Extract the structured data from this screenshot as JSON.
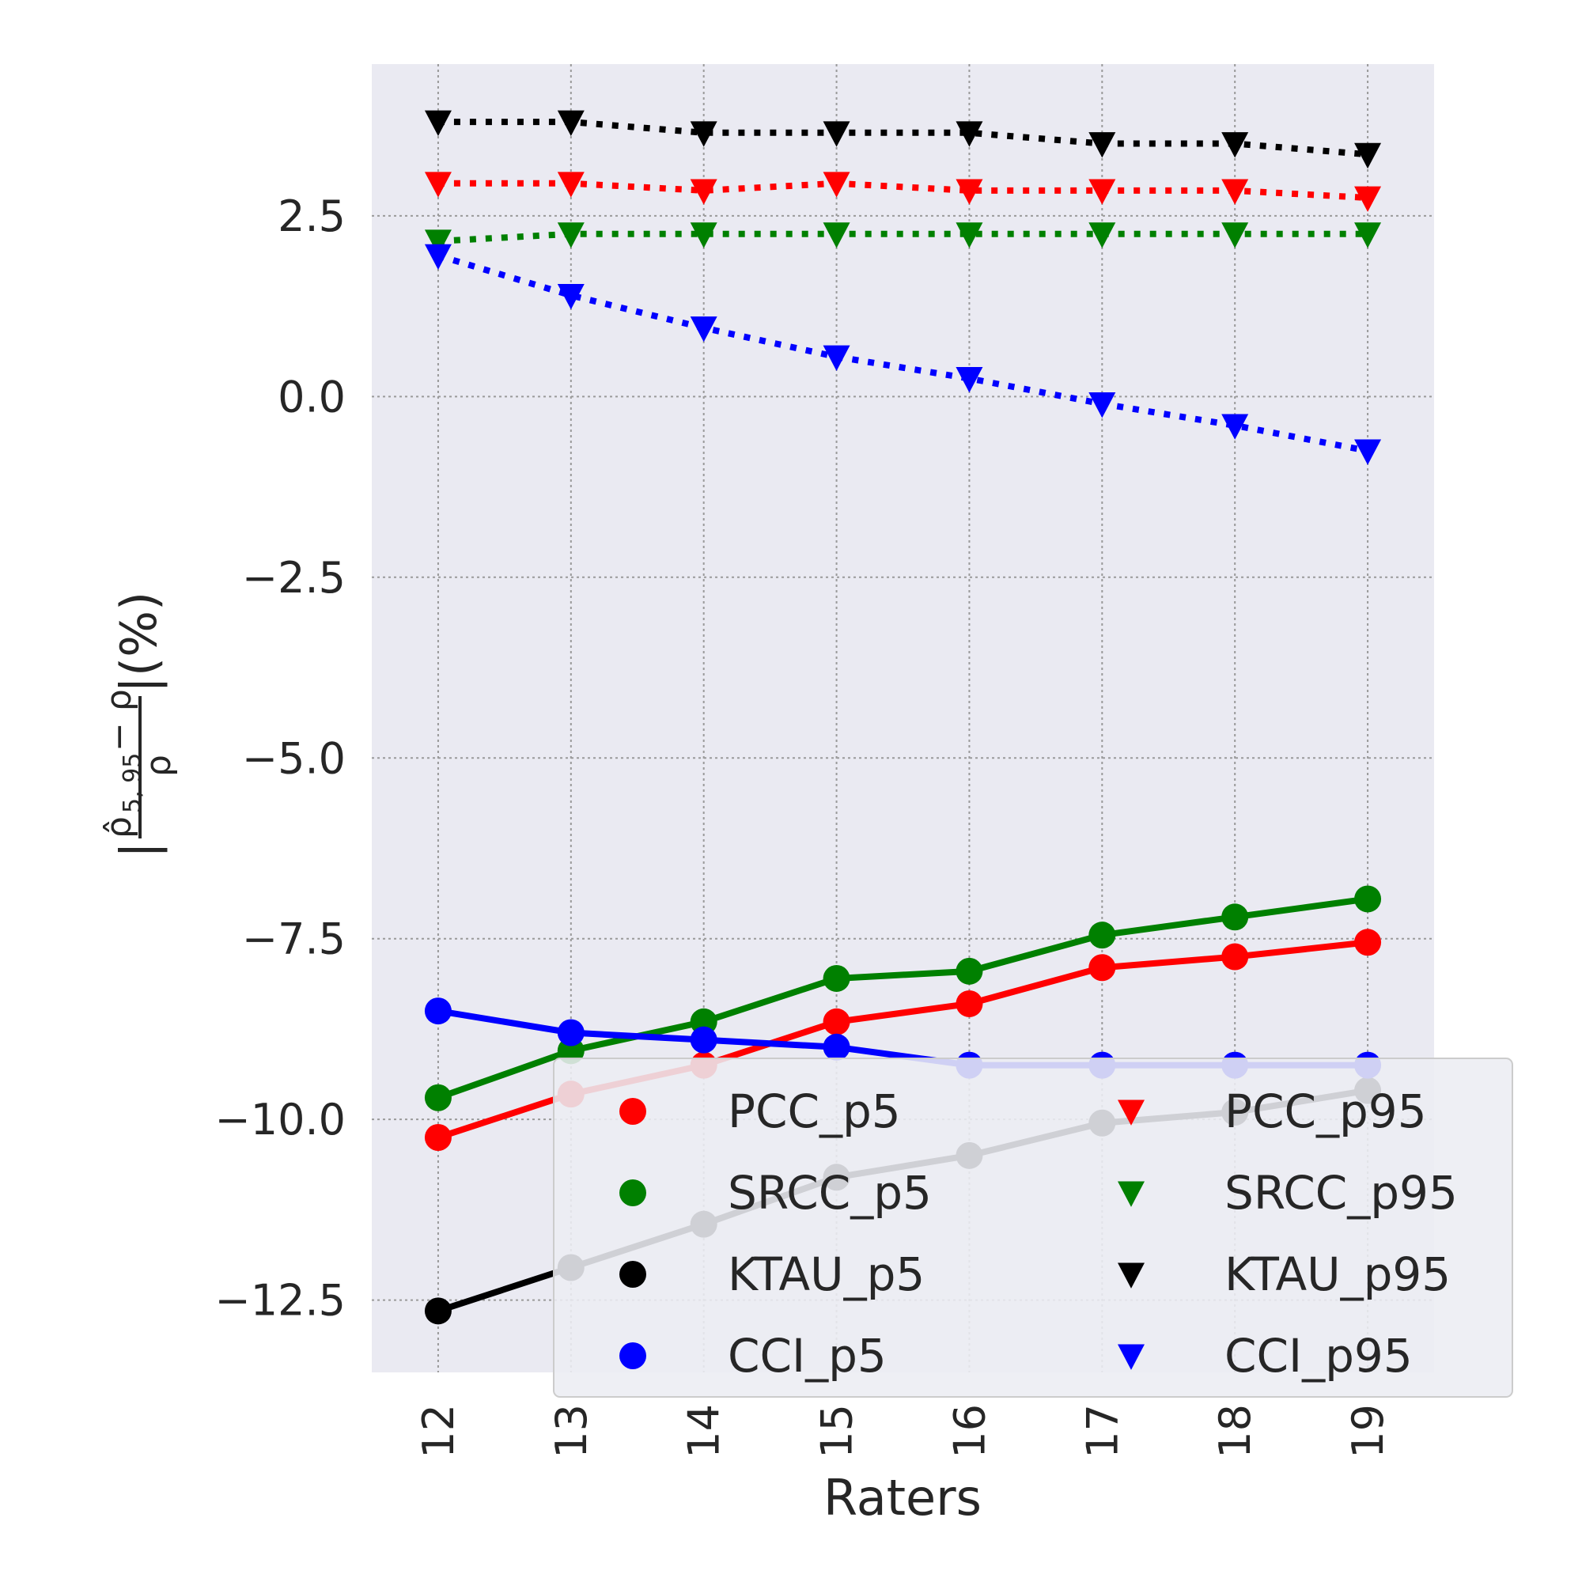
{
  "chart_data": {
    "type": "line",
    "xlabel": "Raters",
    "ylabel_parts": {
      "open": "|",
      "numerator": "ρ̂",
      "numerator_sub": "5, 95",
      "numerator_rest": " − ρ",
      "denominator": "ρ",
      "close": "|(%)"
    },
    "x": [
      12,
      13,
      14,
      15,
      16,
      17,
      18,
      19
    ],
    "x_tick_labels": [
      "12",
      "13",
      "14",
      "15",
      "16",
      "17",
      "18",
      "19"
    ],
    "xlim": [
      11.5,
      19.5
    ],
    "ylim": [
      -13.5,
      4.6
    ],
    "y_ticks": [
      2.5,
      0.0,
      -2.5,
      -5.0,
      -7.5,
      -10.0,
      -12.5
    ],
    "y_tick_labels": [
      "2.5",
      "0.0",
      "−2.5",
      "−5.0",
      "−7.5",
      "−10.0",
      "−12.5"
    ],
    "grid": true,
    "legend_placement": "lower-right",
    "series": [
      {
        "name": "PCC_p5",
        "color": "#ff0000",
        "marker": "circle",
        "linestyle": "solid",
        "values": [
          -10.25,
          -9.65,
          -9.25,
          -8.65,
          -8.4,
          -7.9,
          -7.75,
          -7.55
        ]
      },
      {
        "name": "SRCC_p5",
        "color": "#008000",
        "marker": "circle",
        "linestyle": "solid",
        "values": [
          -9.7,
          -9.05,
          -8.65,
          -8.05,
          -7.95,
          -7.45,
          -7.2,
          -6.95
        ]
      },
      {
        "name": "KTAU_p5",
        "color": "#000000",
        "marker": "circle",
        "linestyle": "solid",
        "values": [
          -12.65,
          -12.05,
          -11.45,
          -10.8,
          -10.5,
          -10.05,
          -9.9,
          -9.6
        ]
      },
      {
        "name": "CCI_p5",
        "color": "#0000ff",
        "marker": "circle",
        "linestyle": "solid",
        "values": [
          -8.5,
          -8.8,
          -8.9,
          -9.0,
          -9.25,
          -9.25,
          -9.25,
          -9.25
        ]
      },
      {
        "name": "PCC_p95",
        "color": "#ff0000",
        "marker": "triangle-down",
        "linestyle": "dotted",
        "values": [
          2.95,
          2.95,
          2.85,
          2.95,
          2.85,
          2.85,
          2.85,
          2.75
        ]
      },
      {
        "name": "SRCC_p95",
        "color": "#008000",
        "marker": "triangle-down",
        "linestyle": "dotted",
        "values": [
          2.15,
          2.25,
          2.25,
          2.25,
          2.25,
          2.25,
          2.25,
          2.25
        ]
      },
      {
        "name": "KTAU_p95",
        "color": "#000000",
        "marker": "triangle-down",
        "linestyle": "dotted",
        "values": [
          3.8,
          3.8,
          3.65,
          3.65,
          3.65,
          3.5,
          3.5,
          3.35
        ]
      },
      {
        "name": "CCI_p95",
        "color": "#0000ff",
        "marker": "triangle-down",
        "linestyle": "dotted",
        "values": [
          1.95,
          1.4,
          0.95,
          0.55,
          0.25,
          -0.1,
          -0.4,
          -0.75
        ]
      }
    ]
  }
}
